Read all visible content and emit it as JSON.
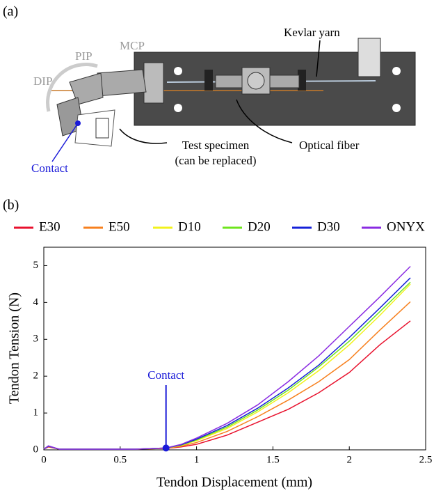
{
  "panel_a": {
    "label": "(a)",
    "joints": [
      "DIP",
      "PIP",
      "MCP"
    ],
    "kevlar": "Kevlar yarn",
    "specimen": [
      "Test specimen",
      "(can be replaced)"
    ],
    "fiber": "Optical fiber",
    "contact": "Contact"
  },
  "chart_data": {
    "type": "line",
    "panel_label": "(b)",
    "x_label": "Tendon Displacement (mm)",
    "y_label": "Tendon Tension (N)",
    "xlim": [
      0,
      2.5
    ],
    "xticks": [
      0,
      0.5,
      1,
      1.5,
      2,
      2.5
    ],
    "ylim": [
      0,
      5.5
    ],
    "yticks": [
      0,
      1,
      2,
      3,
      4,
      5
    ],
    "x": [
      0,
      0.03,
      0.1,
      0.3,
      0.6,
      0.8,
      0.9,
      1.0,
      1.2,
      1.4,
      1.6,
      1.8,
      2.0,
      2.2,
      2.4
    ],
    "series": [
      {
        "name": "E30",
        "color": "#e8112d",
        "values": [
          0.02,
          0.08,
          0.02,
          0.02,
          0.02,
          0.04,
          0.08,
          0.15,
          0.4,
          0.75,
          1.1,
          1.55,
          2.1,
          2.85,
          3.5
        ]
      },
      {
        "name": "E50",
        "color": "#f7801e",
        "values": [
          0.02,
          0.09,
          0.02,
          0.02,
          0.02,
          0.04,
          0.1,
          0.2,
          0.5,
          0.9,
          1.35,
          1.85,
          2.45,
          3.25,
          4.02
        ]
      },
      {
        "name": "D10",
        "color": "#f2f21c",
        "values": [
          0.02,
          0.1,
          0.02,
          0.02,
          0.02,
          0.05,
          0.12,
          0.25,
          0.58,
          1.03,
          1.55,
          2.15,
          2.85,
          3.65,
          4.5
        ]
      },
      {
        "name": "D20",
        "color": "#6ee51c",
        "values": [
          0.02,
          0.1,
          0.02,
          0.02,
          0.02,
          0.05,
          0.13,
          0.27,
          0.62,
          1.08,
          1.62,
          2.25,
          2.95,
          3.75,
          4.55
        ]
      },
      {
        "name": "D30",
        "color": "#1521d8",
        "values": [
          0.02,
          0.1,
          0.02,
          0.02,
          0.02,
          0.05,
          0.14,
          0.29,
          0.66,
          1.13,
          1.68,
          2.3,
          3.05,
          3.85,
          4.67
        ]
      },
      {
        "name": "ONYX",
        "color": "#8a2be2",
        "values": [
          0.02,
          0.11,
          0.02,
          0.02,
          0.02,
          0.05,
          0.15,
          0.32,
          0.72,
          1.22,
          1.85,
          2.55,
          3.35,
          4.15,
          4.98
        ]
      }
    ],
    "annotation": {
      "text": "Contact",
      "x": 0.8,
      "y": 0.05,
      "color": "#1a1ad8"
    },
    "legend": "top"
  }
}
